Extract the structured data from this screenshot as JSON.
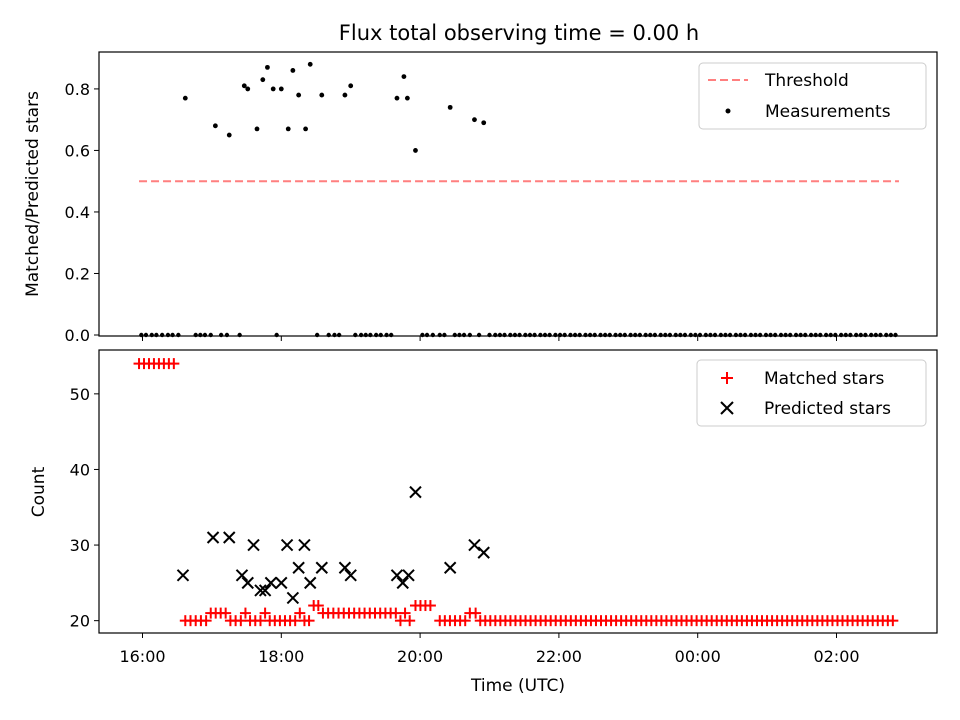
{
  "chart_data": {
    "type": "scatter",
    "title": "Flux total observing time = 0.00 h",
    "xlabel": "Time (UTC)",
    "x_tick_labels": [
      "16:00",
      "18:00",
      "20:00",
      "22:00",
      "00:00",
      "02:00"
    ],
    "colors": {
      "threshold": "#ff7f7f",
      "measurements": "#000000",
      "matched": "#ff0000",
      "predicted": "#000000"
    },
    "panels": [
      {
        "ylabel": "Matched/Predicted stars",
        "ylim": [
          0.0,
          0.92
        ],
        "y_ticks": [
          0.0,
          0.2,
          0.4,
          0.6,
          0.8
        ],
        "y_tick_labels": [
          "0.0",
          "0.2",
          "0.4",
          "0.6",
          "0.8"
        ],
        "legend": {
          "placement": "top-right",
          "threshold_label": "Threshold",
          "measurements_label": "Measurements"
        },
        "threshold": {
          "name": "Threshold",
          "value": 0.5,
          "x_start": "15:57",
          "x_end": "02:54"
        },
        "measurements": {
          "name": "Measurements",
          "nonzero": [
            [
              "16:37",
              0.77
            ],
            [
              "17:03",
              0.68
            ],
            [
              "17:15",
              0.65
            ],
            [
              "17:28",
              0.81
            ],
            [
              "17:31",
              0.8
            ],
            [
              "17:39",
              0.67
            ],
            [
              "17:44",
              0.83
            ],
            [
              "17:48",
              0.87
            ],
            [
              "17:53",
              0.8
            ],
            [
              "18:00",
              0.8
            ],
            [
              "18:06",
              0.67
            ],
            [
              "18:10",
              0.86
            ],
            [
              "18:15",
              0.78
            ],
            [
              "18:21",
              0.67
            ],
            [
              "18:25",
              0.88
            ],
            [
              "18:35",
              0.78
            ],
            [
              "18:55",
              0.78
            ],
            [
              "19:00",
              0.81
            ],
            [
              "19:40",
              0.77
            ],
            [
              "19:46",
              0.84
            ],
            [
              "19:49",
              0.77
            ],
            [
              "19:56",
              0.6
            ],
            [
              "20:26",
              0.74
            ],
            [
              "20:47",
              0.7
            ],
            [
              "20:55",
              0.69
            ]
          ],
          "zero_times": [
            "15:59",
            "16:03",
            "16:08",
            "16:12",
            "16:17",
            "16:22",
            "16:26",
            "16:31",
            "16:46",
            "16:50",
            "16:54",
            "16:59",
            "17:08",
            "17:13",
            "17:24",
            "17:56",
            "18:31",
            "18:41",
            "18:46",
            "18:50",
            "19:04",
            "19:09",
            "19:13",
            "19:17",
            "19:22",
            "19:26",
            "19:31",
            "19:35",
            "20:02",
            "20:06",
            "20:11",
            "20:17",
            "20:21",
            "20:30",
            "20:34",
            "20:38",
            "20:43",
            "20:51",
            "21:00",
            "21:05",
            "21:09",
            "21:13",
            "21:18",
            "21:22",
            "21:26",
            "21:31",
            "21:35",
            "21:39",
            "21:44",
            "21:48",
            "21:52",
            "21:57",
            "22:01",
            "22:05",
            "22:10",
            "22:14",
            "22:18",
            "22:23",
            "22:27",
            "22:31",
            "22:36",
            "22:40",
            "22:44",
            "22:49",
            "22:53",
            "22:57",
            "23:02",
            "23:06",
            "23:10",
            "23:15",
            "23:19",
            "23:23",
            "23:28",
            "23:32",
            "23:36",
            "23:41",
            "23:45",
            "23:49",
            "23:54",
            "23:58",
            "00:02",
            "00:07",
            "00:11",
            "00:15",
            "00:20",
            "00:24",
            "00:28",
            "00:33",
            "00:37",
            "00:41",
            "00:46",
            "00:50",
            "00:54",
            "00:59",
            "01:03",
            "01:07",
            "01:12",
            "01:16",
            "01:20",
            "01:25",
            "01:29",
            "01:33",
            "01:38",
            "01:42",
            "01:46",
            "01:51",
            "01:55",
            "01:59",
            "02:04",
            "02:08",
            "02:12",
            "02:17",
            "02:21",
            "02:25",
            "02:30",
            "02:34",
            "02:38",
            "02:43",
            "02:47",
            "02:51"
          ]
        }
      },
      {
        "ylabel": "Count",
        "ylim": [
          18.5,
          55.8
        ],
        "y_ticks": [
          20,
          30,
          40,
          50
        ],
        "y_tick_labels": [
          "20",
          "30",
          "40",
          "50"
        ],
        "legend": {
          "placement": "top-right",
          "matched_label": "Matched stars",
          "predicted_label": "Predicted stars"
        },
        "matched": {
          "name": "Matched stars",
          "segments": [
            {
              "from": "15:57",
              "to": "16:31",
              "step_minutes": 4.3,
              "value": 54
            },
            {
              "from": "16:37",
              "to": "16:55",
              "step_minutes": 4.5,
              "value": 20
            },
            {
              "from": "16:59",
              "to": "17:12",
              "step_minutes": 4.3,
              "value": 21
            },
            {
              "from": "17:16",
              "to": "17:25",
              "step_minutes": 4.5,
              "value": 20
            },
            {
              "from": "17:29",
              "to": "17:29",
              "step_minutes": 4.5,
              "value": 21
            },
            {
              "from": "17:33",
              "to": "17:42",
              "step_minutes": 4.5,
              "value": 20
            },
            {
              "from": "17:46",
              "to": "17:46",
              "step_minutes": 4.5,
              "value": 21
            },
            {
              "from": "17:50",
              "to": "18:12",
              "step_minutes": 4.4,
              "value": 20
            },
            {
              "from": "18:16",
              "to": "18:16",
              "step_minutes": 4.5,
              "value": 21
            },
            {
              "from": "18:20",
              "to": "18:24",
              "step_minutes": 4.0,
              "value": 20
            },
            {
              "from": "18:28",
              "to": "18:32",
              "step_minutes": 4.0,
              "value": 22
            },
            {
              "from": "18:36",
              "to": "19:39",
              "step_minutes": 4.5,
              "value": 21
            },
            {
              "from": "19:43",
              "to": "19:43",
              "step_minutes": 4.5,
              "value": 20
            },
            {
              "from": "19:47",
              "to": "19:47",
              "step_minutes": 4.5,
              "value": 21
            },
            {
              "from": "19:51",
              "to": "19:51",
              "step_minutes": 4.5,
              "value": 20
            },
            {
              "from": "19:56",
              "to": "20:13",
              "step_minutes": 4.3,
              "value": 22
            },
            {
              "from": "20:17",
              "to": "20:39",
              "step_minutes": 4.4,
              "value": 20
            },
            {
              "from": "20:43",
              "to": "20:48",
              "step_minutes": 5.0,
              "value": 21
            },
            {
              "from": "20:52",
              "to": "02:53",
              "step_minutes": 4.35,
              "value": 20
            }
          ]
        },
        "predicted": {
          "name": "Predicted stars",
          "points": [
            [
              "16:35",
              26
            ],
            [
              "17:01",
              31
            ],
            [
              "17:15",
              31
            ],
            [
              "17:26",
              26
            ],
            [
              "17:31",
              25
            ],
            [
              "17:36",
              30
            ],
            [
              "17:42",
              24
            ],
            [
              "17:46",
              24
            ],
            [
              "17:51",
              25
            ],
            [
              "18:00",
              25
            ],
            [
              "18:05",
              30
            ],
            [
              "18:10",
              23
            ],
            [
              "18:15",
              27
            ],
            [
              "18:20",
              30
            ],
            [
              "18:25",
              25
            ],
            [
              "18:35",
              27
            ],
            [
              "18:55",
              27
            ],
            [
              "19:00",
              26
            ],
            [
              "19:40",
              26
            ],
            [
              "19:45",
              25
            ],
            [
              "19:50",
              26
            ],
            [
              "19:56",
              37
            ],
            [
              "20:26",
              27
            ],
            [
              "20:47",
              30
            ],
            [
              "20:55",
              29
            ]
          ]
        }
      }
    ]
  }
}
